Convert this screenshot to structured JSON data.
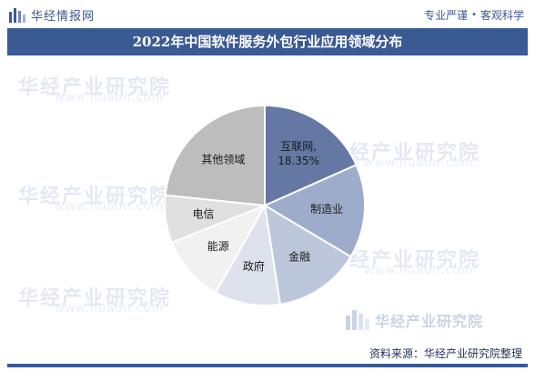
{
  "header": {
    "logo_text": "华经情报网",
    "slogan_left": "专业严谨",
    "slogan_sep": "•",
    "slogan_right": "客观科学"
  },
  "title": "2022年中国软件服务外包行业应用领域分布",
  "watermarks": {
    "brand": "华经产业研究院",
    "url": "www.huaon.com"
  },
  "source": "资料来源：华经产业研究院整理",
  "chart_data": {
    "type": "pie",
    "title": "2022年中国软件服务外包行业应用领域分布",
    "start": "12 o'clock",
    "direction": "clockwise",
    "slices": [
      {
        "label": "互联网",
        "value": 18.35,
        "value_label": "18.35%",
        "color": "#6478a3"
      },
      {
        "label": "制造业",
        "value": 15.2,
        "color": "#9eaccb"
      },
      {
        "label": "金融",
        "value": 14.0,
        "color": "#bdc7dc"
      },
      {
        "label": "政府",
        "value": 10.6,
        "color": "#dde2ed"
      },
      {
        "label": "能源",
        "value": 10.8,
        "color": "#f1f1f1"
      },
      {
        "label": "电信",
        "value": 7.7,
        "color": "#e0e0e0"
      },
      {
        "label": "其他领域",
        "value": 23.35,
        "color": "#bdbdbd"
      }
    ]
  }
}
